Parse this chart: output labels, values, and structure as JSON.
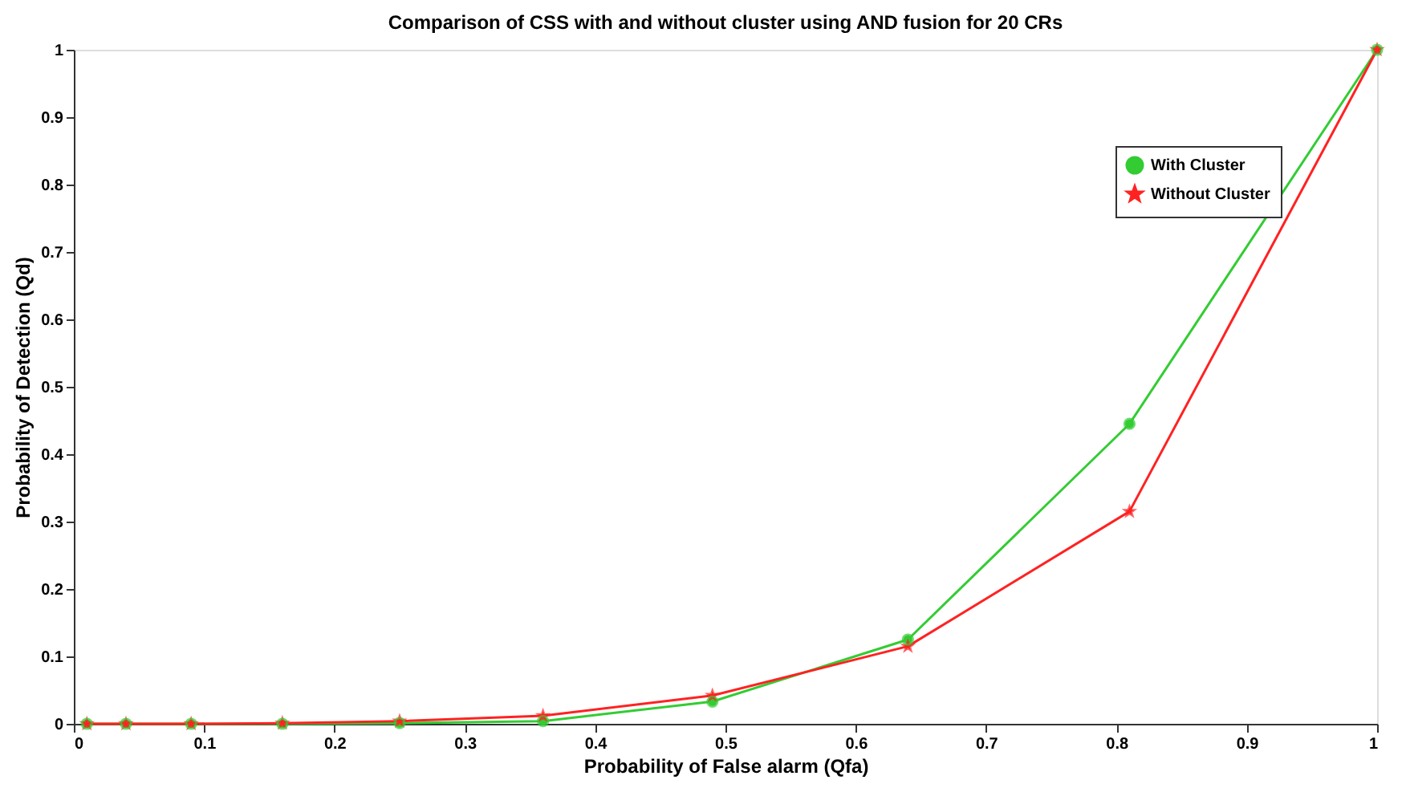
{
  "chart_data": {
    "type": "line",
    "title": "Comparison of CSS with and without cluster using AND fusion for 20 CRs",
    "xlabel": "Probability of False alarm (Qfa)",
    "ylabel": "Probability of Detection (Qd)",
    "x": [
      0.01,
      0.04,
      0.09,
      0.16,
      0.25,
      0.36,
      0.49,
      0.64,
      0.81,
      1.0
    ],
    "series": [
      {
        "name": "With Cluster",
        "color": "#33cc33",
        "marker": "circle",
        "values": [
          0,
          0,
          0,
          0,
          0.001,
          0.004,
          0.033,
          0.125,
          0.445,
          1.0
        ]
      },
      {
        "name": "Without Cluster",
        "color": "#ff2222",
        "marker": "star",
        "values": [
          0,
          0,
          0,
          0.001,
          0.004,
          0.012,
          0.042,
          0.115,
          0.315,
          1.0
        ]
      }
    ],
    "xlim": [
      0,
      1
    ],
    "ylim": [
      0,
      1
    ],
    "xticks": [
      0,
      0.1,
      0.2,
      0.3,
      0.4,
      0.5,
      0.6,
      0.7,
      0.8,
      0.9,
      1
    ],
    "yticks": [
      0,
      0.1,
      0.2,
      0.3,
      0.4,
      0.5,
      0.6,
      0.7,
      0.8,
      0.9,
      1
    ],
    "grid": false,
    "legend": "top right",
    "line_style": "solid"
  }
}
